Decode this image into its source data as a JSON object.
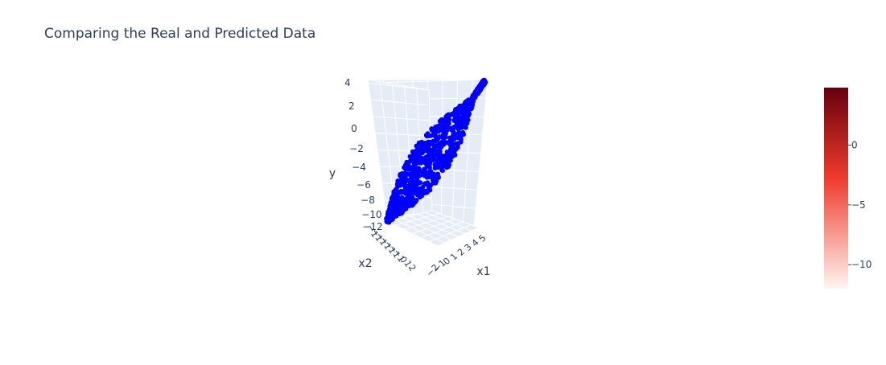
{
  "chart_data": {
    "type": "scatter",
    "title": "Comparing the Real and Predicted Data",
    "subtitle": "",
    "scene": {
      "x_axis": {
        "label": "x1",
        "ticks": [
          "−2",
          "−1",
          "0",
          "1",
          "2",
          "3",
          "4",
          "5"
        ],
        "range": [
          -2,
          5
        ]
      },
      "y_axis": {
        "label": "x2",
        "ticks": [
          "−1",
          "−1",
          "−1",
          "−1",
          "−1",
          "−1",
          "−1",
          "0",
          "1",
          "2"
        ],
        "range": [
          -2,
          2
        ]
      },
      "z_axis": {
        "label": "y",
        "ticks": [
          "4",
          "2",
          "0",
          "−2",
          "−4",
          "−6",
          "−8",
          "−10",
          "−12"
        ],
        "range": [
          -12,
          4
        ]
      },
      "background_color": "#e5ecf6",
      "grid_color": "#ffffff",
      "grid": true
    },
    "series": [
      {
        "kind": "scatter3d-markers",
        "color": "#0000ff",
        "trend": "linear increasing",
        "z_range": [
          -12,
          4
        ]
      }
    ],
    "colorbar": {
      "colorscale": "Reds",
      "range": [
        -12,
        4.8
      ],
      "ticks": [
        "0",
        "−5",
        "−10"
      ],
      "tick_values": [
        0,
        -5,
        -10
      ],
      "color_high": "#67000d",
      "color_mid": "#ef3b2c",
      "color_low": "#fff5f0"
    },
    "axis_line_color": "#ffffff",
    "text_color": "#2a3f5f"
  }
}
